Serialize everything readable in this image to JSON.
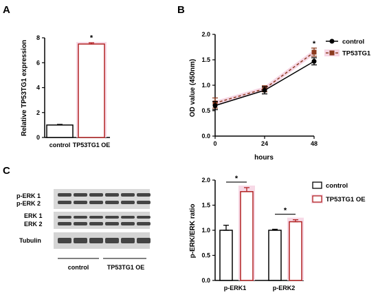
{
  "panels": {
    "A": {
      "letter": "A",
      "chart": {
        "type": "bar",
        "ylabel": "Relative TP53TG1 expression",
        "ylim": [
          0,
          8
        ],
        "yticks": [
          0,
          2,
          4,
          6,
          8
        ],
        "categories": [
          "control",
          "TP53TG1 OE"
        ],
        "values": [
          1.0,
          7.5
        ],
        "errors": [
          0.05,
          0.1
        ],
        "colors": [
          "#000000",
          "#b22222"
        ],
        "significance": "*"
      }
    },
    "B": {
      "letter": "B",
      "chart": {
        "type": "line",
        "xlabel": "hours",
        "ylabel": "OD value (450nm)",
        "xlim": [
          0,
          48
        ],
        "ylim": [
          0,
          2.0
        ],
        "xticks": [
          0,
          24,
          48
        ],
        "yticks": [
          "0.0",
          "0.5",
          "1.0",
          "1.5",
          "2.0"
        ],
        "series": [
          {
            "name": "control",
            "x": [
              0,
              24,
              48
            ],
            "values": [
              0.6,
              0.9,
              1.47
            ],
            "errors": [
              0.08,
              0.07,
              0.07
            ],
            "color": "#000000",
            "dashed": false
          },
          {
            "name": "TP53TG1",
            "x": [
              0,
              24,
              48
            ],
            "values": [
              0.65,
              0.93,
              1.65
            ],
            "errors": [
              0.1,
              0.06,
              0.08
            ],
            "color": "#8b3a1e",
            "dashed": true
          }
        ],
        "significance": "*"
      }
    },
    "C": {
      "letter": "C",
      "blot": {
        "labels": [
          "p-ERK 1",
          "p-ERK 2",
          "ERK 1",
          "ERK 2",
          "Tubulin"
        ],
        "groups": [
          "control",
          "TP53TG1 OE"
        ]
      },
      "chart": {
        "type": "bar",
        "ylabel": "p-ERK/ERK ratio",
        "ylim": [
          0,
          2.0
        ],
        "yticks": [
          "0.0",
          "0.5",
          "1.0",
          "1.5",
          "2.0"
        ],
        "categories": [
          "p-ERK1",
          "p-ERK2"
        ],
        "series": [
          {
            "name": "control",
            "values": [
              1.0,
              1.0
            ],
            "errors": [
              0.1,
              0.02
            ],
            "color": "#000000"
          },
          {
            "name": "TP53TG1 OE",
            "values": [
              1.77,
              1.17
            ],
            "errors": [
              0.08,
              0.04
            ],
            "color": "#b22222"
          }
        ],
        "significance": [
          "*",
          "*"
        ]
      }
    }
  }
}
